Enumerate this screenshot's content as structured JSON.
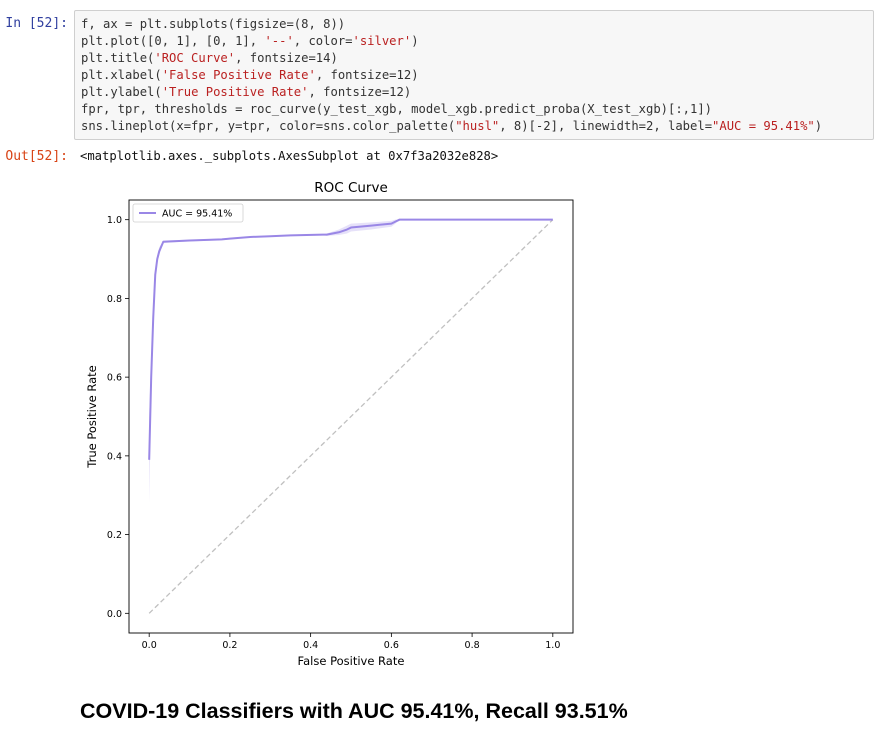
{
  "input_prompt": "In [52]:",
  "output_prompt": "Out[52]:",
  "code_lines": [
    [
      {
        "t": "f, ax = plt.subplots(figsize=(8, 8))",
        "c": "#333333"
      }
    ],
    [
      {
        "t": "plt.plot([0, 1], [0, 1], ",
        "c": "#333333"
      },
      {
        "t": "'--'",
        "c": "#ba2121"
      },
      {
        "t": ", color=",
        "c": "#333333"
      },
      {
        "t": "'silver'",
        "c": "#ba2121"
      },
      {
        "t": ")",
        "c": "#333333"
      }
    ],
    [
      {
        "t": "plt.title(",
        "c": "#333333"
      },
      {
        "t": "'ROC Curve'",
        "c": "#ba2121"
      },
      {
        "t": ", fontsize=14)",
        "c": "#333333"
      }
    ],
    [
      {
        "t": "plt.xlabel(",
        "c": "#333333"
      },
      {
        "t": "'False Positive Rate'",
        "c": "#ba2121"
      },
      {
        "t": ", fontsize=12)",
        "c": "#333333"
      }
    ],
    [
      {
        "t": "plt.ylabel(",
        "c": "#333333"
      },
      {
        "t": "'True Positive Rate'",
        "c": "#ba2121"
      },
      {
        "t": ", fontsize=12)",
        "c": "#333333"
      }
    ],
    [
      {
        "t": "fpr, tpr, thresholds = roc_curve(y_test_xgb, model_xgb.predict_proba(X_test_xgb)[:,1])",
        "c": "#333333"
      }
    ],
    [
      {
        "t": "sns.lineplot(x=fpr, y=tpr, color=sns.color_palette(",
        "c": "#333333"
      },
      {
        "t": "\"husl\"",
        "c": "#ba2121"
      },
      {
        "t": ", 8)[-2], linewidth=2, label=",
        "c": "#333333"
      },
      {
        "t": "\"AUC = 95.41%\"",
        "c": "#ba2121"
      },
      {
        "t": ")",
        "c": "#333333"
      }
    ]
  ],
  "output_text": "<matplotlib.axes._subplots.AxesSubplot at 0x7f3a2032e828>",
  "chart_data": {
    "type": "line",
    "title": "ROC Curve",
    "xlabel": "False Positive Rate",
    "ylabel": "True Positive Rate",
    "xlim": [
      -0.05,
      1.05
    ],
    "ylim": [
      -0.05,
      1.05
    ],
    "x_ticks": [
      "0.0",
      "0.2",
      "0.4",
      "0.6",
      "0.8",
      "1.0"
    ],
    "y_ticks": [
      "0.0",
      "0.2",
      "0.4",
      "0.6",
      "0.8",
      "1.0"
    ],
    "legend_location": "upper left",
    "grid": false,
    "series": [
      {
        "name": "AUC = 95.41%",
        "color": "#9a87e6",
        "line_width": 2,
        "x": [
          0.0,
          0.005,
          0.01,
          0.015,
          0.02,
          0.025,
          0.035,
          0.1,
          0.18,
          0.2,
          0.25,
          0.3,
          0.35,
          0.43,
          0.44,
          0.47,
          0.49,
          0.5,
          0.55,
          0.6,
          0.61,
          0.62,
          0.65,
          0.8,
          1.0
        ],
        "y": [
          0.39,
          0.6,
          0.75,
          0.86,
          0.9,
          0.92,
          0.944,
          0.947,
          0.95,
          0.952,
          0.956,
          0.958,
          0.96,
          0.962,
          0.962,
          0.968,
          0.975,
          0.98,
          0.985,
          0.99,
          0.995,
          1.0,
          1.0,
          1.0,
          1.0
        ],
        "band_upper": [
          0.5,
          0.65,
          0.78,
          0.87,
          0.91,
          0.93,
          0.947,
          0.949,
          0.952,
          0.954,
          0.957,
          0.959,
          0.961,
          0.963,
          0.965,
          0.975,
          0.985,
          0.99,
          0.993,
          0.997,
          1.0,
          1.0,
          1.0,
          1.0,
          1.0
        ],
        "band_lower": [
          0.28,
          0.55,
          0.72,
          0.85,
          0.89,
          0.91,
          0.941,
          0.945,
          0.948,
          0.95,
          0.955,
          0.957,
          0.959,
          0.961,
          0.959,
          0.961,
          0.965,
          0.97,
          0.975,
          0.982,
          0.99,
          1.0,
          1.0,
          1.0,
          1.0
        ]
      },
      {
        "x": [
          0,
          1
        ],
        "y": [
          0,
          1
        ],
        "color": "#c0c0c0",
        "style": "dashed"
      }
    ]
  },
  "markdown_heading": "COVID-19 Classifiers with AUC 95.41%, Recall 93.51%"
}
